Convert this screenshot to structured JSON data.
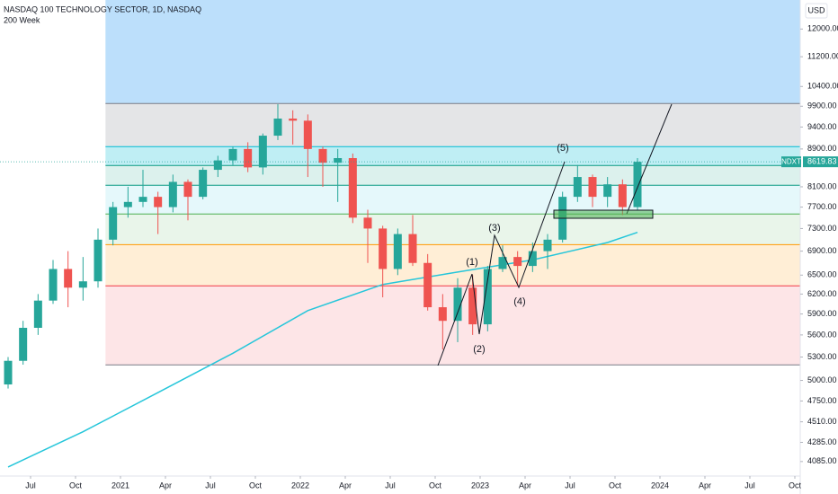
{
  "chart_data": {
    "type": "candlestick",
    "title": "NASDAQ 100 TECHNOLOGY SECTOR, 1D, NASDAQ",
    "currency": "USD",
    "symbol": "NDXT",
    "last": 8619.83,
    "log_scale": true,
    "grid": false,
    "up_color": "#26a69a",
    "down_color": "#ef5350",
    "xlim": [
      "2020-05",
      "2024-10"
    ],
    "ylim": [
      3940,
      12900
    ],
    "x": [
      "2020-05",
      "2020-06",
      "2020-07",
      "2020-08",
      "2020-09",
      "2020-10",
      "2020-11",
      "2020-12",
      "2021-01",
      "2021-02",
      "2021-03",
      "2021-04",
      "2021-05",
      "2021-06",
      "2021-07",
      "2021-08",
      "2021-09",
      "2021-10",
      "2021-11",
      "2021-12",
      "2022-01",
      "2022-02",
      "2022-03",
      "2022-04",
      "2022-05",
      "2022-06",
      "2022-07",
      "2022-08",
      "2022-09",
      "2022-10",
      "2022-11",
      "2022-12",
      "2023-01",
      "2023-02",
      "2023-03",
      "2023-04",
      "2023-05",
      "2023-06",
      "2023-07",
      "2023-08",
      "2023-09",
      "2023-10",
      "2023-11"
    ],
    "open": [
      4950,
      5250,
      5700,
      6100,
      6600,
      6300,
      6400,
      7100,
      7700,
      7800,
      7900,
      7700,
      8200,
      7900,
      8450,
      8650,
      8900,
      8500,
      9200,
      9600,
      9550,
      8900,
      8600,
      8700,
      7500,
      7300,
      6600,
      7200,
      6700,
      6000,
      5800,
      6300,
      5750,
      6600,
      6800,
      6650,
      6900,
      7100,
      7900,
      8300,
      7900,
      8150,
      7700
    ],
    "high": [
      5300,
      5800,
      6200,
      6750,
      6900,
      6800,
      7300,
      7800,
      8100,
      8450,
      8000,
      8350,
      8250,
      8500,
      8750,
      8950,
      9050,
      9250,
      9950,
      9800,
      9700,
      8950,
      8900,
      8800,
      7650,
      7350,
      7300,
      7550,
      6850,
      6200,
      6450,
      6500,
      6650,
      7000,
      6900,
      7050,
      7200,
      8000,
      8550,
      8350,
      8300,
      8250,
      8700
    ],
    "low": [
      4900,
      5200,
      5600,
      6050,
      6000,
      6100,
      6300,
      7000,
      7500,
      7700,
      7200,
      7600,
      7450,
      7850,
      8300,
      8550,
      8400,
      8350,
      9100,
      9000,
      8300,
      8100,
      7800,
      7400,
      6700,
      6150,
      6500,
      6650,
      5950,
      5400,
      5500,
      5600,
      5650,
      6550,
      6350,
      6550,
      6600,
      7050,
      7800,
      7700,
      7700,
      7550,
      7650
    ],
    "close": [
      5250,
      5700,
      6100,
      6600,
      6300,
      6400,
      7100,
      7700,
      7800,
      7900,
      7700,
      8200,
      7900,
      8450,
      8650,
      8900,
      8500,
      9200,
      9600,
      9550,
      8900,
      8600,
      8700,
      7500,
      7300,
      6600,
      7200,
      6700,
      6000,
      5800,
      6300,
      5750,
      6600,
      6800,
      6650,
      6900,
      7100,
      7900,
      8300,
      7900,
      8150,
      7700,
      8619.83
    ],
    "series": [
      {
        "name": "200 Week",
        "color": "#26c6da",
        "x": [
          "2020-05",
          "2020-10",
          "2021-03",
          "2021-08",
          "2022-01",
          "2022-06",
          "2022-11",
          "2023-04",
          "2023-09",
          "2023-11"
        ],
        "values": [
          4030,
          4400,
          4850,
          5350,
          5950,
          6350,
          6550,
          6750,
          7050,
          7230
        ]
      }
    ],
    "fib_start": "2020-12",
    "fib_levels": [
      9966,
      8953,
      8541,
      8130,
      7570,
      7013,
      6329,
      5197
    ],
    "wave_labels": [
      "(1)",
      "(2)",
      "(3)",
      "(4)",
      "(5)"
    ],
    "yticks": [
      {
        "value": 12000,
        "label": "12000.00"
      },
      {
        "value": 11200,
        "label": "11200.00"
      },
      {
        "value": 10400,
        "label": "10400.00"
      },
      {
        "value": 9900,
        "label": "9900.00"
      },
      {
        "value": 9400,
        "label": "9400.00"
      },
      {
        "value": 8900,
        "label": "8900.00"
      },
      {
        "value": 8100,
        "label": "8100.00"
      },
      {
        "value": 7700,
        "label": "7700.00"
      },
      {
        "value": 7300,
        "label": "7300.00"
      },
      {
        "value": 6900,
        "label": "6900.00"
      },
      {
        "value": 6500,
        "label": "6500.00"
      },
      {
        "value": 6200,
        "label": "6200.00"
      },
      {
        "value": 5900,
        "label": "5900.00"
      },
      {
        "value": 5600,
        "label": "5600.00"
      },
      {
        "value": 5300,
        "label": "5300.00"
      },
      {
        "value": 5000,
        "label": "5000.00"
      },
      {
        "value": 4750,
        "label": "4750.00"
      },
      {
        "value": 4510,
        "label": "4510.00"
      },
      {
        "value": 4285,
        "label": "4285.00"
      },
      {
        "value": 4085,
        "label": "4085.00"
      }
    ],
    "xticks": [
      {
        "value": "2020-07",
        "label": "Jul"
      },
      {
        "value": "2020-10",
        "label": "Oct"
      },
      {
        "value": "2021-01",
        "label": "2021"
      },
      {
        "value": "2021-04",
        "label": "Apr"
      },
      {
        "value": "2021-07",
        "label": "Jul"
      },
      {
        "value": "2021-10",
        "label": "Oct"
      },
      {
        "value": "2022-01",
        "label": "2022"
      },
      {
        "value": "2022-04",
        "label": "Apr"
      },
      {
        "value": "2022-07",
        "label": "Jul"
      },
      {
        "value": "2022-10",
        "label": "Oct"
      },
      {
        "value": "2023-01",
        "label": "2023"
      },
      {
        "value": "2023-04",
        "label": "Apr"
      },
      {
        "value": "2023-07",
        "label": "Jul"
      },
      {
        "value": "2023-10",
        "label": "Oct"
      },
      {
        "value": "2024-01",
        "label": "2024"
      },
      {
        "value": "2024-04",
        "label": "Apr"
      },
      {
        "value": "2024-07",
        "label": "Jul"
      },
      {
        "value": "2024-10",
        "label": "Oct"
      }
    ]
  }
}
